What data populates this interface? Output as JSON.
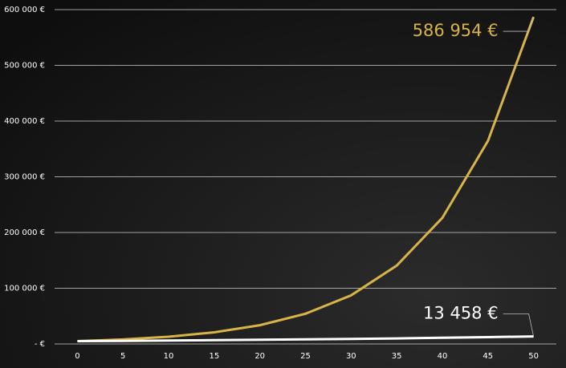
{
  "chart_data": {
    "type": "line",
    "x": [
      0,
      5,
      10,
      15,
      20,
      25,
      30,
      35,
      40,
      45,
      50
    ],
    "series": [
      {
        "color": "#d6b449",
        "values": [
          5000,
          8053,
          12969,
          20886,
          33637,
          54174,
          87247,
          140512,
          226296,
          364452,
          586954
        ],
        "value_labels": [
          null,
          null,
          null,
          null,
          null,
          null,
          null,
          null,
          null,
          null,
          "586 954 €"
        ]
      },
      {
        "color": "#ffffff",
        "values": [
          5000,
          5520,
          6095,
          6729,
          7430,
          8203,
          9057,
          10000,
          11041,
          12190,
          13458
        ],
        "value_labels": [
          null,
          null,
          null,
          null,
          null,
          null,
          null,
          null,
          null,
          null,
          "13 458 €"
        ]
      }
    ],
    "xlim": [
      -2.5,
      52.5
    ],
    "xticks": [
      0,
      5,
      10,
      15,
      20,
      25,
      30,
      35,
      40,
      45,
      50
    ],
    "ylim": [
      0,
      600000
    ],
    "yticks": [
      {
        "value": 0,
        "label": "- €"
      },
      {
        "value": 100000,
        "label": "100 000 €"
      },
      {
        "value": 200000,
        "label": "200 000 €"
      },
      {
        "value": 300000,
        "label": "300 000 €"
      },
      {
        "value": 400000,
        "label": "400 000 €"
      },
      {
        "value": 500000,
        "label": "500 000 €"
      },
      {
        "value": 600000,
        "label": "600 000 €"
      }
    ],
    "grid": true
  }
}
